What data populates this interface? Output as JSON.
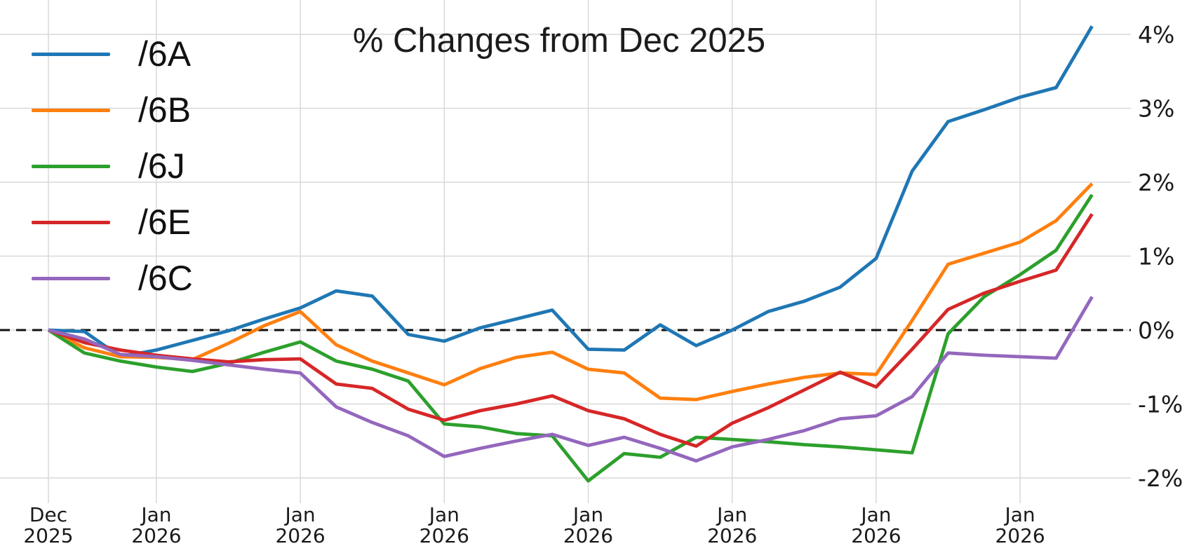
{
  "title": "% Changes from Dec 2025",
  "chart_data": {
    "type": "line",
    "title": "% Changes from Dec 2025",
    "xlabel": "",
    "ylabel": "",
    "grid": true,
    "legend_position": "top-left",
    "baseline": {
      "value": 0,
      "style": "dashed",
      "color": "#000000"
    },
    "y_axis_side": "right",
    "y_ticks": [
      {
        "value": 4,
        "label": "4%"
      },
      {
        "value": 3,
        "label": "3%"
      },
      {
        "value": 2,
        "label": "2%"
      },
      {
        "value": 1,
        "label": "1%"
      },
      {
        "value": 0,
        "label": "0%"
      },
      {
        "value": -1,
        "label": "-1%"
      },
      {
        "value": -2,
        "label": "-2%"
      }
    ],
    "ylim": [
      -2.34,
      4.47
    ],
    "num_points": 30,
    "x_ticks": [
      {
        "index": 0,
        "top": "Dec",
        "bottom": "2025"
      },
      {
        "index": 3,
        "top": "Jan",
        "bottom": "2026"
      },
      {
        "index": 7,
        "top": "Jan",
        "bottom": "2026"
      },
      {
        "index": 11,
        "top": "Jan",
        "bottom": "2026"
      },
      {
        "index": 15,
        "top": "Jan",
        "bottom": "2026"
      },
      {
        "index": 19,
        "top": "Jan",
        "bottom": "2026"
      },
      {
        "index": 23,
        "top": "Jan",
        "bottom": "2026"
      },
      {
        "index": 27,
        "top": "Jan",
        "bottom": "2026"
      }
    ],
    "series": [
      {
        "name": "/6A",
        "color": "#1f77b4",
        "values": [
          0.0,
          -0.02,
          -0.36,
          -0.27,
          -0.14,
          -0.01,
          0.15,
          0.3,
          0.53,
          0.46,
          -0.06,
          -0.15,
          0.03,
          0.15,
          0.27,
          -0.26,
          -0.27,
          0.07,
          -0.21,
          0.0,
          0.25,
          0.39,
          0.58,
          0.97,
          2.15,
          2.82,
          2.98,
          3.15,
          3.28,
          4.11
        ]
      },
      {
        "name": "/6B",
        "color": "#ff7f0e",
        "values": [
          0.0,
          -0.24,
          -0.36,
          -0.37,
          -0.4,
          -0.18,
          0.06,
          0.25,
          -0.2,
          -0.42,
          -0.58,
          -0.74,
          -0.52,
          -0.37,
          -0.3,
          -0.53,
          -0.58,
          -0.92,
          -0.94,
          -0.83,
          -0.73,
          -0.64,
          -0.58,
          -0.6,
          0.13,
          0.89,
          1.04,
          1.19,
          1.48,
          1.98
        ]
      },
      {
        "name": "/6J",
        "color": "#2ca02c",
        "values": [
          0.0,
          -0.31,
          -0.42,
          -0.5,
          -0.56,
          -0.45,
          -0.3,
          -0.16,
          -0.42,
          -0.53,
          -0.69,
          -1.27,
          -1.31,
          -1.4,
          -1.43,
          -2.04,
          -1.67,
          -1.72,
          -1.45,
          -1.48,
          -1.51,
          -1.55,
          -1.58,
          -1.62,
          -1.66,
          -0.05,
          0.45,
          0.75,
          1.08,
          1.83
        ]
      },
      {
        "name": "/6E",
        "color": "#d62728",
        "values": [
          0.0,
          -0.17,
          -0.27,
          -0.34,
          -0.39,
          -0.43,
          -0.4,
          -0.39,
          -0.73,
          -0.79,
          -1.07,
          -1.22,
          -1.09,
          -1.0,
          -0.89,
          -1.09,
          -1.2,
          -1.41,
          -1.57,
          -1.26,
          -1.05,
          -0.81,
          -0.57,
          -0.77,
          -0.26,
          0.28,
          0.5,
          0.66,
          0.81,
          1.57
        ]
      },
      {
        "name": "/6C",
        "color": "#9467bd",
        "values": [
          0.0,
          -0.12,
          -0.33,
          -0.36,
          -0.41,
          -0.47,
          -0.53,
          -0.58,
          -1.04,
          -1.25,
          -1.43,
          -1.71,
          -1.6,
          -1.5,
          -1.41,
          -1.56,
          -1.45,
          -1.6,
          -1.77,
          -1.58,
          -1.48,
          -1.36,
          -1.2,
          -1.16,
          -0.9,
          -0.31,
          -0.34,
          -0.36,
          -0.38,
          0.45
        ]
      }
    ],
    "colors": {
      "grid": "#d9d9d9",
      "tick_text": "#1a1a1a",
      "baseline": "#111111"
    }
  }
}
